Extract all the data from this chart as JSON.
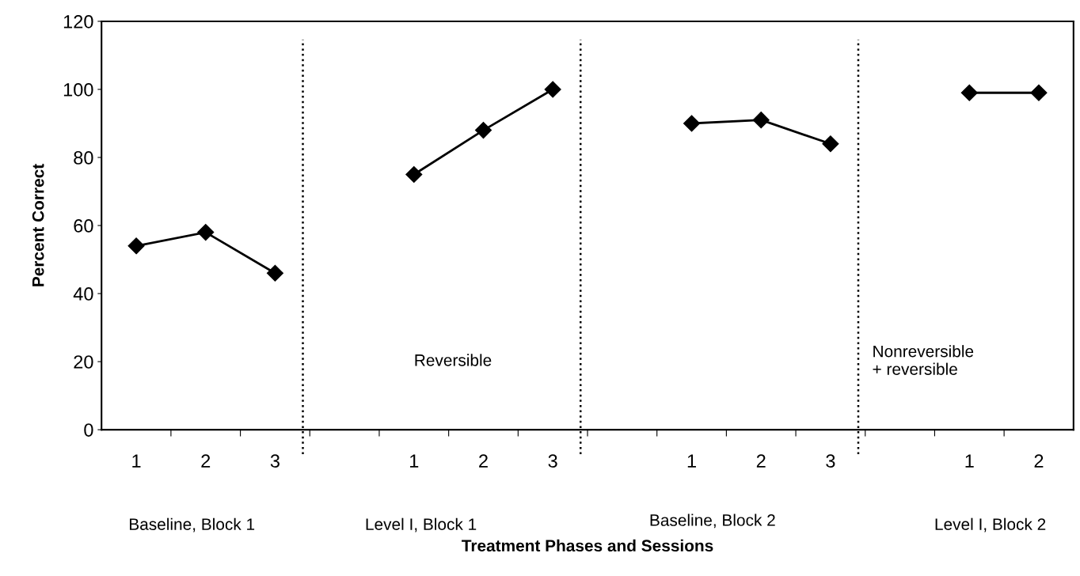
{
  "chart_data": {
    "type": "line",
    "xlabel": "Treatment Phases and Sessions",
    "ylabel": "Percent Correct",
    "categories": [
      "1",
      "2",
      "3",
      null,
      "1",
      "2",
      "3",
      null,
      "1",
      "2",
      "3",
      null,
      "1",
      "2"
    ],
    "series": [
      {
        "color": "#000000",
        "values": [
          54,
          58,
          46,
          null,
          75,
          88,
          100,
          null,
          90,
          91,
          84,
          null,
          99,
          99
        ]
      }
    ],
    "ylim": [
      0,
      120
    ],
    "yticks": [
      0,
      20,
      40,
      60,
      80,
      100,
      120
    ],
    "marker": "diamond",
    "line_style": "solid",
    "grid": false,
    "legend": false,
    "annotations": [
      "Baseline, Block 1",
      "Level I, Block 1",
      "Baseline, Block 2",
      "Level I, Block 2",
      "Reversible",
      "Nonreversible\n+ reversible"
    ]
  }
}
